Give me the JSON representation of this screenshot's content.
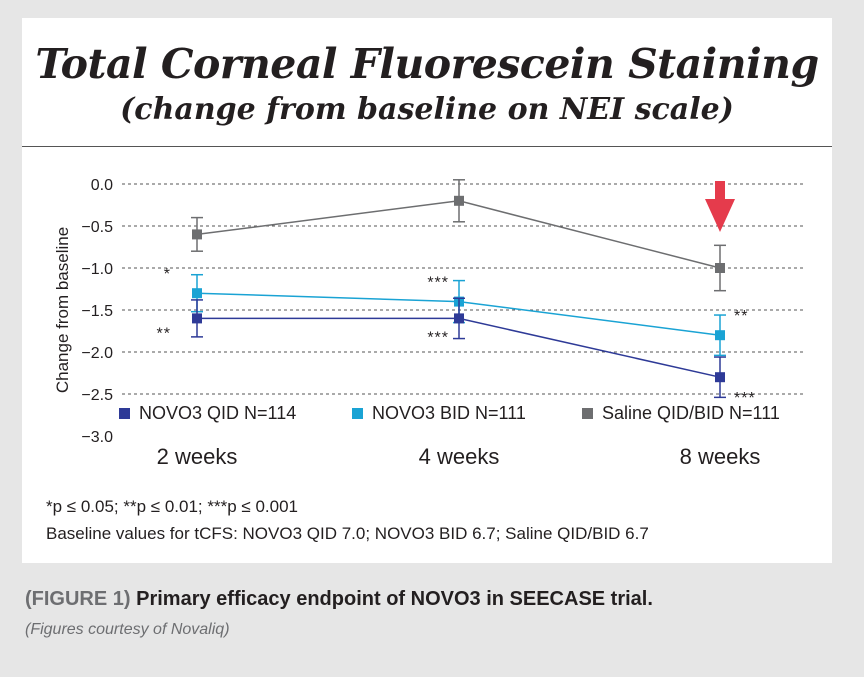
{
  "chart_data": {
    "type": "line",
    "title": "Total Corneal Fluorescein Staining",
    "subtitle": "(change from baseline on NEI scale)",
    "ylabel": "Change from baseline",
    "xlabel": "",
    "ylim": [
      -3.0,
      0.0
    ],
    "yticks": [
      "0.0",
      "−0.5",
      "−1.0",
      "−1.5",
      "−2.0",
      "−2.5",
      "−3.0"
    ],
    "ytick_values": [
      0.0,
      -0.5,
      -1.0,
      -1.5,
      -2.0,
      -2.5,
      -3.0
    ],
    "categories": [
      "2 weeks",
      "4 weeks",
      "8 weeks"
    ],
    "grid": "horizontal dashed",
    "legend_position": "bottom",
    "series": [
      {
        "name": "NOVO3 QID N=114",
        "color": "#2e3a97",
        "values": [
          -1.6,
          -1.6,
          -2.3
        ],
        "error": [
          0.22,
          0.24,
          0.24
        ],
        "annotations": [
          "**",
          "***",
          "***"
        ]
      },
      {
        "name": "NOVO3 BID N=111",
        "color": "#1aa3d4",
        "values": [
          -1.3,
          -1.4,
          -1.8
        ],
        "error": [
          0.22,
          0.25,
          0.24
        ],
        "annotations": [
          "*",
          "***",
          "**"
        ]
      },
      {
        "name": "Saline QID/BID N=111",
        "color": "#6d6e70",
        "values": [
          -0.6,
          -0.2,
          -1.0
        ],
        "error": [
          0.2,
          0.25,
          0.27
        ],
        "annotations": [
          "",
          "",
          ""
        ]
      }
    ],
    "highlight": {
      "category": "8 weeks",
      "marker": "down-arrow",
      "color": "#e53b4c"
    }
  },
  "footnotes": {
    "significance": "*p ≤ 0.05; **p ≤ 0.01; ***p ≤ 0.001",
    "baseline": "Baseline values for tCFS: NOVO3 QID 7.0; NOVO3 BID 6.7; Saline QID/BID 6.7"
  },
  "caption": {
    "label": "(FIGURE 1)",
    "text": " Primary efficacy endpoint of NOVO3 in SEECASE trial.",
    "credit": "(Figures courtesy of Novaliq)"
  }
}
